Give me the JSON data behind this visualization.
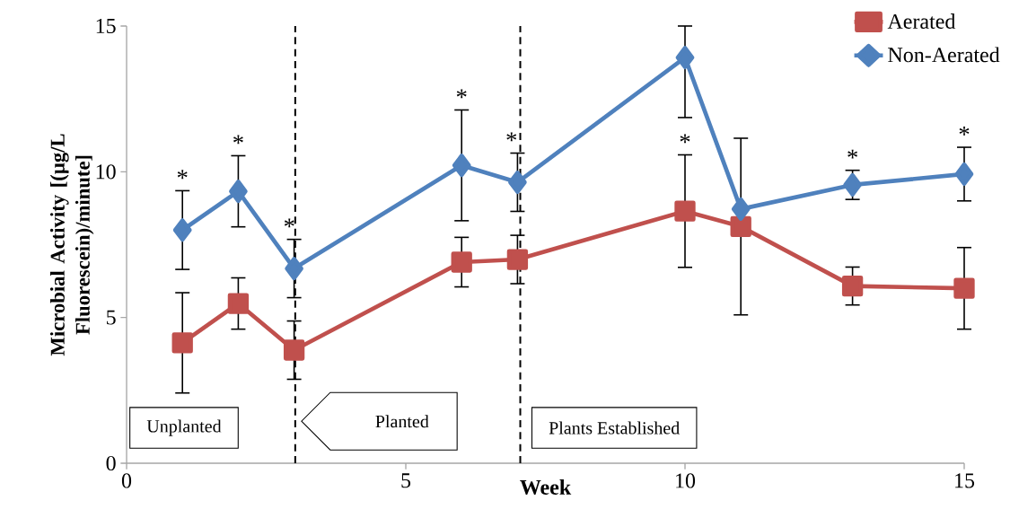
{
  "chart_data": {
    "type": "line",
    "xlabel": "Week",
    "ylabel": "Microbial Activity [(µg/L Fluorescein)/minute]",
    "xlim": [
      0,
      15
    ],
    "ylim": [
      0,
      15
    ],
    "xticks": [
      0,
      5,
      10,
      15
    ],
    "yticks": [
      0,
      5,
      10,
      15
    ],
    "grid": false,
    "legend": "top right",
    "line_style": "solid",
    "series": [
      {
        "name": "Aerated",
        "color": "#c0504d",
        "marker": "square",
        "x": [
          1,
          2,
          3,
          6,
          7,
          10,
          11,
          13,
          15
        ],
        "values": [
          4.13,
          5.48,
          3.88,
          6.9,
          6.99,
          8.65,
          8.12,
          6.08,
          6.0
        ],
        "errors": [
          1.72,
          0.88,
          1.0,
          0.85,
          0.83,
          1.93,
          3.03,
          0.65,
          1.4
        ]
      },
      {
        "name": "Non-Aerated",
        "color": "#4f81bd",
        "marker": "diamond",
        "x": [
          1,
          2,
          3,
          6,
          7,
          10,
          11,
          13,
          15
        ],
        "values": [
          8.0,
          9.33,
          6.68,
          10.22,
          9.64,
          13.92,
          8.72,
          9.55,
          9.92
        ],
        "errors": [
          1.35,
          1.22,
          1.0,
          1.9,
          1.0,
          [
            11.86,
            15
          ],
          null,
          0.5,
          0.92
        ]
      }
    ],
    "ref_lines": [
      {
        "axis": "x",
        "value": 3.02,
        "line_style": "dashed",
        "color": "#000000"
      },
      {
        "axis": "x",
        "value": 7.05,
        "line_style": "dashed",
        "color": "#000000"
      }
    ],
    "annotations": [
      "*",
      "*",
      "*",
      "*",
      "*",
      "*",
      "*",
      "*",
      "Unplanted",
      "Planted",
      "Plants Established"
    ]
  }
}
